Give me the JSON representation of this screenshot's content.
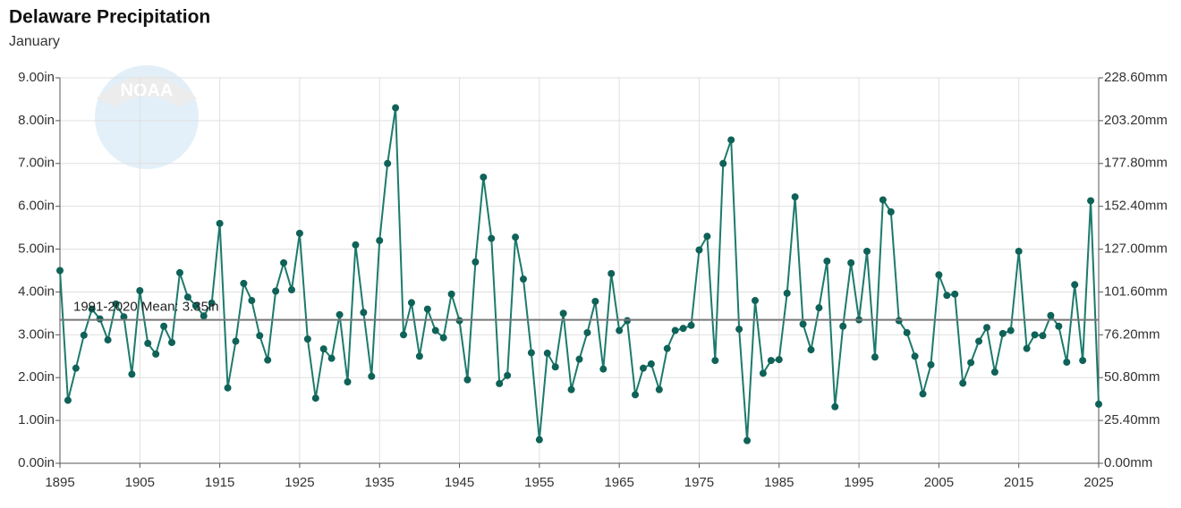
{
  "chart_data": {
    "type": "line",
    "title": "Delaware Precipitation",
    "subtitle": "January",
    "watermark": "NOAA",
    "x": [
      1895,
      1896,
      1897,
      1898,
      1899,
      1900,
      1901,
      1902,
      1903,
      1904,
      1905,
      1906,
      1907,
      1908,
      1909,
      1910,
      1911,
      1912,
      1913,
      1914,
      1915,
      1916,
      1917,
      1918,
      1919,
      1920,
      1921,
      1922,
      1923,
      1924,
      1925,
      1926,
      1927,
      1928,
      1929,
      1930,
      1931,
      1932,
      1933,
      1934,
      1935,
      1936,
      1937,
      1938,
      1939,
      1940,
      1941,
      1942,
      1943,
      1944,
      1945,
      1946,
      1947,
      1948,
      1949,
      1950,
      1951,
      1952,
      1953,
      1954,
      1955,
      1956,
      1957,
      1958,
      1959,
      1960,
      1961,
      1962,
      1963,
      1964,
      1965,
      1966,
      1967,
      1968,
      1969,
      1970,
      1971,
      1972,
      1973,
      1974,
      1975,
      1976,
      1977,
      1978,
      1979,
      1980,
      1981,
      1982,
      1983,
      1984,
      1985,
      1986,
      1987,
      1988,
      1989,
      1990,
      1991,
      1992,
      1993,
      1994,
      1995,
      1996,
      1997,
      1998,
      1999,
      2000,
      2001,
      2002,
      2003,
      2004,
      2005,
      2006,
      2007,
      2008,
      2009,
      2010,
      2011,
      2012,
      2013,
      2014,
      2015,
      2016,
      2017,
      2018,
      2019,
      2020,
      2021,
      2022,
      2023,
      2024,
      2025
    ],
    "series": [
      {
        "color": "#1d7a6c",
        "values": [
          4.5,
          1.47,
          2.22,
          2.99,
          3.6,
          3.37,
          2.88,
          3.72,
          3.42,
          2.08,
          4.03,
          2.8,
          2.55,
          3.2,
          2.82,
          4.45,
          3.88,
          3.68,
          3.44,
          3.74,
          5.6,
          1.76,
          2.85,
          4.2,
          3.8,
          2.98,
          2.41,
          4.02,
          4.68,
          4.05,
          5.37,
          2.9,
          1.52,
          2.67,
          2.45,
          3.47,
          1.9,
          5.1,
          3.52,
          2.03,
          5.2,
          7.0,
          8.3,
          3.0,
          3.75,
          2.5,
          3.6,
          3.1,
          2.93,
          3.95,
          3.33,
          1.95,
          4.7,
          6.68,
          5.25,
          1.86,
          2.05,
          5.28,
          4.3,
          2.58,
          0.55,
          2.57,
          2.25,
          3.5,
          1.72,
          2.43,
          3.05,
          3.78,
          2.2,
          4.43,
          3.1,
          3.33,
          1.6,
          2.22,
          2.32,
          1.72,
          2.68,
          3.1,
          3.15,
          3.22,
          4.98,
          5.3,
          2.4,
          7.0,
          7.55,
          3.13,
          0.53,
          3.8,
          2.1,
          2.4,
          2.42,
          3.97,
          6.22,
          3.25,
          2.65,
          3.63,
          4.72,
          1.32,
          3.2,
          4.68,
          3.35,
          4.95,
          2.48,
          6.15,
          5.87,
          3.33,
          3.05,
          2.5,
          1.62,
          2.3,
          4.4,
          3.92,
          3.95,
          1.87,
          2.35,
          2.85,
          3.17,
          2.13,
          3.03,
          3.1,
          4.95,
          2.68,
          3.0,
          2.98,
          3.45,
          3.2,
          2.36,
          4.17,
          2.4,
          6.13,
          1.38
        ]
      }
    ],
    "mean": {
      "value": 3.35,
      "label": "1991-2020 Mean: 3.35in"
    },
    "xlim": [
      1895,
      2025
    ],
    "xticks": [
      1895,
      1905,
      1915,
      1925,
      1935,
      1945,
      1955,
      1965,
      1975,
      1985,
      1995,
      2005,
      2015,
      2025
    ],
    "ylim": [
      0,
      9
    ],
    "yticks": [
      {
        "value": 0,
        "label": "0.00in"
      },
      {
        "value": 1,
        "label": "1.00in"
      },
      {
        "value": 2,
        "label": "2.00in"
      },
      {
        "value": 3,
        "label": "3.00in"
      },
      {
        "value": 4,
        "label": "4.00in"
      },
      {
        "value": 5,
        "label": "5.00in"
      },
      {
        "value": 6,
        "label": "6.00in"
      },
      {
        "value": 7,
        "label": "7.00in"
      },
      {
        "value": 8,
        "label": "8.00in"
      },
      {
        "value": 9,
        "label": "9.00in"
      }
    ],
    "y2lim": [
      0,
      228.6
    ],
    "y2ticks": [
      {
        "value": 0,
        "label": "0.00mm"
      },
      {
        "value": 25.4,
        "label": "25.40mm"
      },
      {
        "value": 50.8,
        "label": "50.80mm"
      },
      {
        "value": 76.2,
        "label": "76.20mm"
      },
      {
        "value": 101.6,
        "label": "101.60mm"
      },
      {
        "value": 127,
        "label": "127.00mm"
      },
      {
        "value": 152.4,
        "label": "152.40mm"
      },
      {
        "value": 177.8,
        "label": "177.80mm"
      },
      {
        "value": 203.2,
        "label": "203.20mm"
      },
      {
        "value": 228.6,
        "label": "228.60mm"
      }
    ],
    "grid": true
  }
}
